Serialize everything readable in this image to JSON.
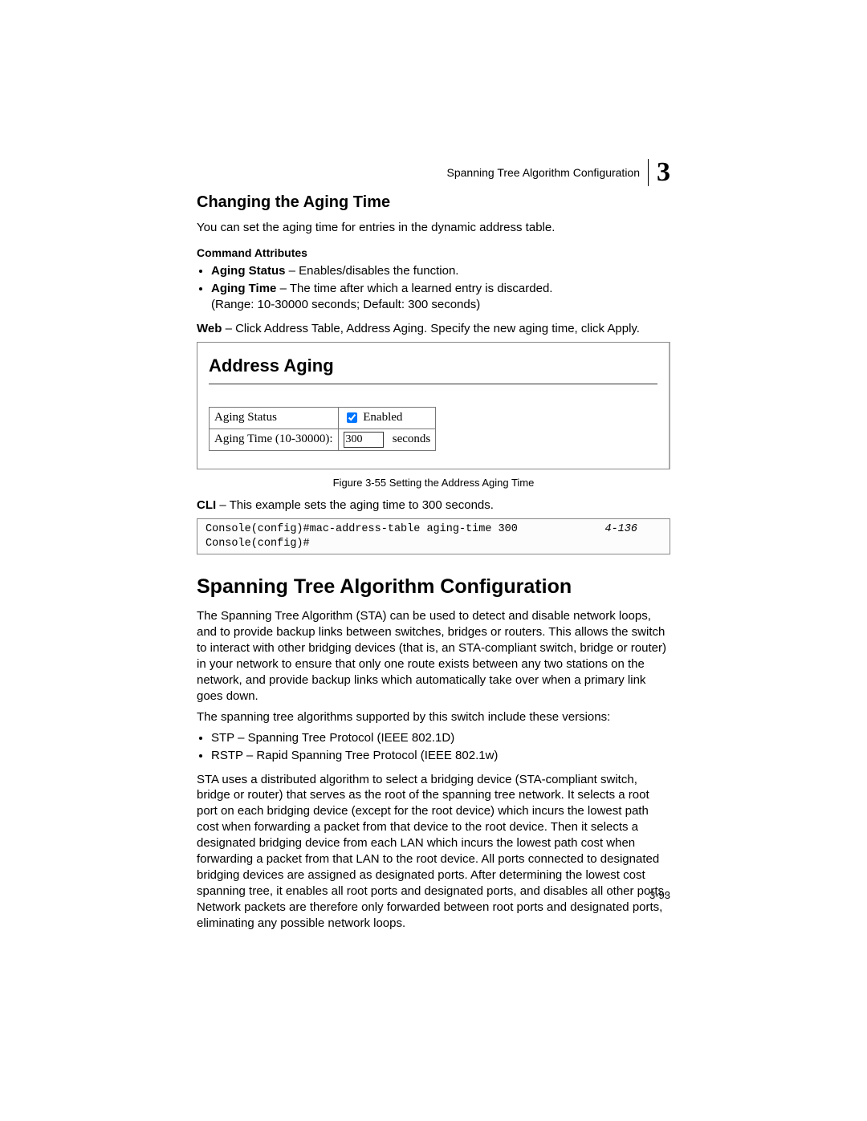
{
  "header": {
    "running_title": "Spanning Tree Algorithm Configuration",
    "chapter_number": "3"
  },
  "section1": {
    "title": "Changing the Aging Time",
    "intro": "You can set the aging time for entries in the dynamic address table.",
    "cmd_attr_head": "Command Attributes",
    "attr_aging_status_label": "Aging Status",
    "attr_aging_status_text": " – Enables/disables the function.",
    "attr_aging_time_label": "Aging Time",
    "attr_aging_time_text1": " – The time after which a learned entry is discarded.",
    "attr_aging_time_text2": "(Range: 10-30000 seconds; Default: 300 seconds)",
    "web_label": "Web",
    "web_text": " – Click Address Table, Address Aging. Specify the new aging time, click Apply."
  },
  "figure": {
    "panel_title": "Address Aging",
    "row1_label": "Aging Status",
    "row1_checkbox_checked": true,
    "row1_checkbox_label": "Enabled",
    "row2_label": "Aging Time (10-30000):",
    "row2_value": "300",
    "row2_unit": "seconds",
    "caption": "Figure 3-55  Setting the Address Aging Time",
    "border_color": "#888888",
    "background": "#ffffff"
  },
  "cli": {
    "lead_label": "CLI",
    "lead_text": " – This example sets the aging time to 300 seconds.",
    "line1": "Console(config)#mac-address-table aging-time 300",
    "ref": "4-136",
    "line2": "Console(config)#",
    "border_color": "#888888",
    "font_family": "Courier New"
  },
  "section2": {
    "title": "Spanning Tree Algorithm Configuration",
    "para1": "The Spanning Tree Algorithm (STA) can be used to detect and disable network loops, and to provide backup links between switches, bridges or routers. This allows the switch to interact with other bridging devices (that is, an STA-compliant switch, bridge or router) in your network to ensure that only one route exists between any two stations on the network, and provide backup links which automatically take over when a primary link goes down.",
    "para2": "The spanning tree algorithms supported by this switch include these versions:",
    "bullet1": "STP – Spanning Tree Protocol (IEEE 802.1D)",
    "bullet2": "RSTP – Rapid Spanning Tree Protocol (IEEE 802.1w)",
    "para3": "STA uses a distributed algorithm to select a bridging device (STA-compliant switch, bridge or router) that serves as the root of the spanning tree network. It selects a root port on each bridging device (except for the root device) which incurs the lowest path cost when forwarding a packet from that device to the root device. Then it selects a designated bridging device from each LAN which incurs the lowest path cost when forwarding a packet from that LAN to the root device. All ports connected to designated bridging devices are assigned as designated ports. After determining the lowest cost spanning tree, it enables all root ports and designated ports, and disables all other ports. Network packets are therefore only forwarded between root ports and designated ports, eliminating any possible network loops."
  },
  "page_number": "3-93",
  "colors": {
    "text": "#000000",
    "background": "#ffffff"
  }
}
